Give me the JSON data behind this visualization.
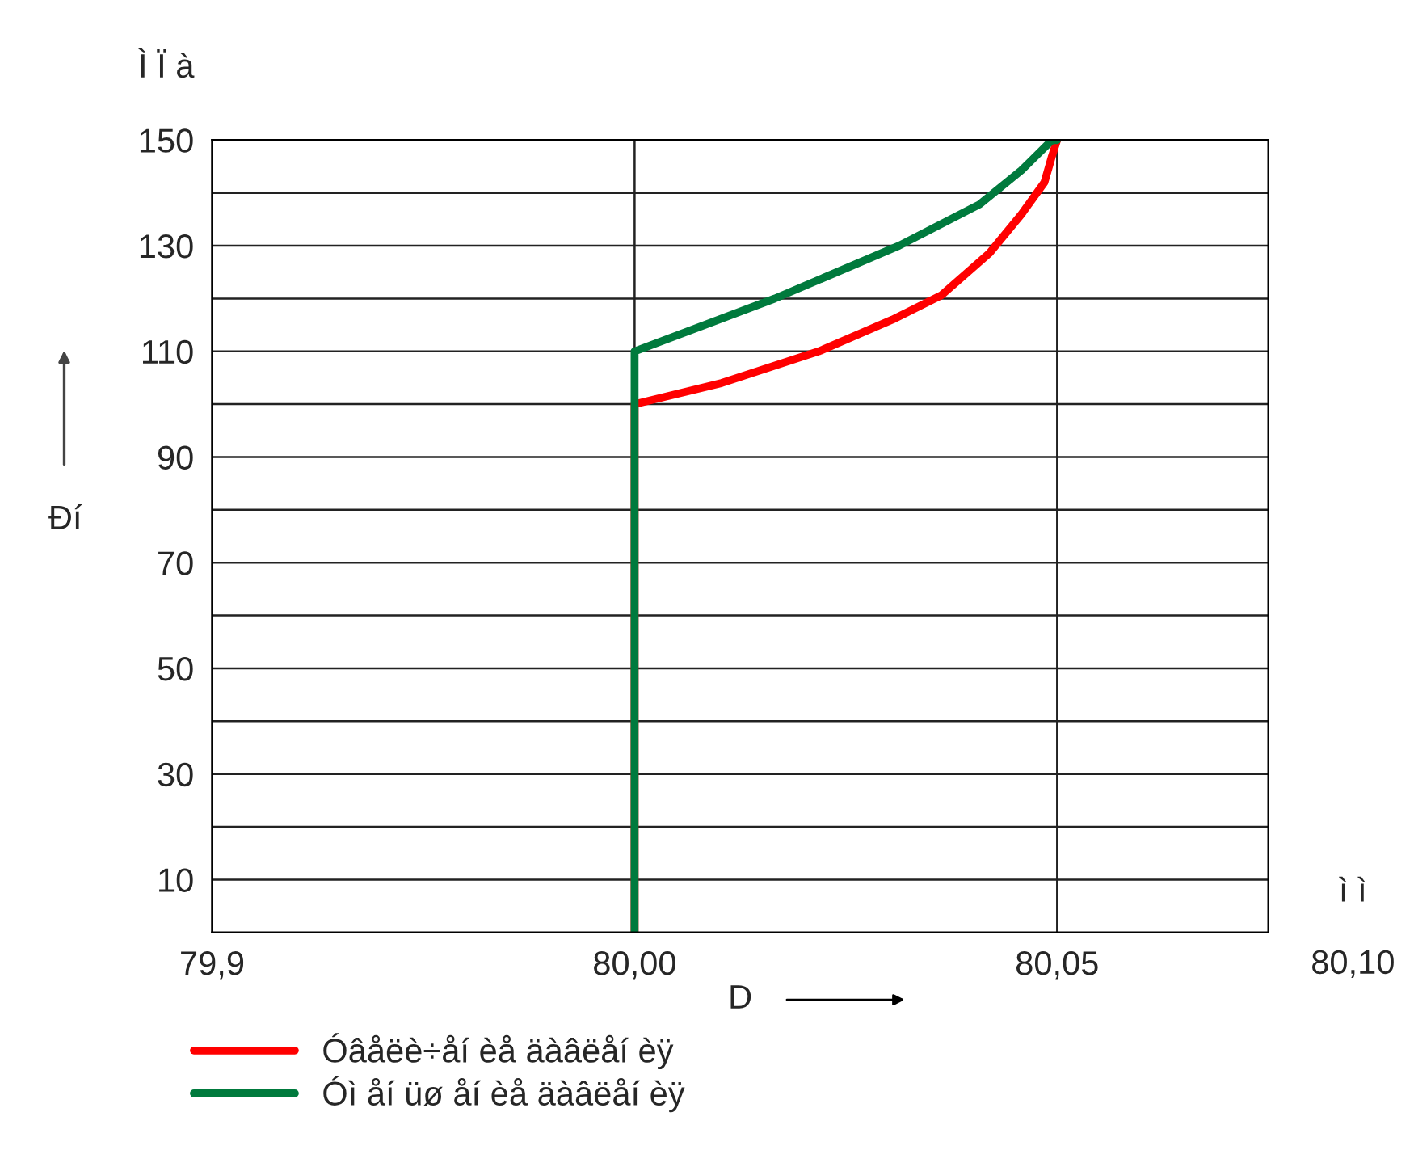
{
  "chart_data": {
    "type": "line",
    "xlabel": "D",
    "ylabel": "Ðí",
    "annotations": [
      "Ì Ï à",
      "ì ì",
      "80,10"
    ],
    "series": [
      {
        "name": "Óâåëè÷åí èå äàâëåí èÿ",
        "color": "#ff0000",
        "x": [
          80.0,
          80.0,
          80.0103,
          80.0218,
          80.0305,
          80.0363,
          80.042,
          80.0458,
          80.0485,
          80.0494,
          80.05
        ],
        "values": [
          0,
          100,
          104,
          110,
          116,
          120.6,
          128.6,
          136,
          142,
          147,
          150
        ]
      },
      {
        "name": "Óì åí üø åí èå äàâëåí èÿ",
        "color": "#007a3d",
        "x": [
          80.0,
          80.0,
          80.0166,
          80.0313,
          80.0408,
          80.0458,
          80.0494,
          80.05
        ],
        "values": [
          0,
          110,
          120,
          130,
          137.8,
          144.3,
          150,
          150
        ]
      }
    ],
    "xlim": [
      79.95,
      80.075
    ],
    "xticks": [
      {
        "value": 79.95,
        "label": "79,9"
      },
      {
        "value": 80.0,
        "label": "80,00"
      },
      {
        "value": 80.05,
        "label": "80,05"
      }
    ],
    "ylim": [
      0,
      150
    ],
    "yticks": [
      10,
      {
        "value": 20,
        "label": null
      },
      30,
      {
        "value": 40,
        "label": null
      },
      50,
      {
        "value": 60,
        "label": null
      },
      70,
      {
        "value": 80,
        "label": null
      },
      90,
      {
        "value": 100,
        "label": null
      },
      110,
      {
        "value": 120,
        "label": null
      },
      130,
      {
        "value": 140,
        "label": null
      },
      150
    ],
    "grid": true,
    "legend": "bottom",
    "marker": "none",
    "line_style": "solid"
  }
}
